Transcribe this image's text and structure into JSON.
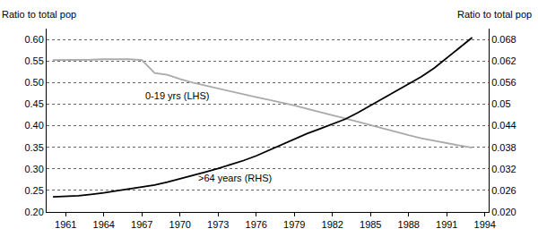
{
  "chart_data": {
    "type": "line",
    "ylabel": "Ratio to total pop",
    "y2label": "Ratio to total pop",
    "x": [
      1960,
      1961,
      1962,
      1963,
      1964,
      1965,
      1966,
      1967,
      1968,
      1969,
      1970,
      1971,
      1972,
      1973,
      1974,
      1975,
      1976,
      1977,
      1978,
      1979,
      1980,
      1981,
      1982,
      1983,
      1984,
      1985,
      1986,
      1987,
      1988,
      1989,
      1990,
      1991,
      1992,
      1993
    ],
    "series": [
      {
        "name": "0-19 yrs (LHS)",
        "color": "#aaaaaa",
        "axis": "y",
        "values": [
          0.552,
          0.552,
          0.553,
          0.553,
          0.554,
          0.554,
          0.554,
          0.552,
          0.522,
          0.518,
          0.508,
          0.5,
          0.493,
          0.487,
          0.48,
          0.473,
          0.466,
          0.46,
          0.454,
          0.447,
          0.439,
          0.431,
          0.424,
          0.417,
          0.409,
          0.401,
          0.393,
          0.385,
          0.378,
          0.371,
          0.365,
          0.359,
          0.354,
          0.349
        ]
      },
      {
        "name": ">64 years (RHS)",
        "color": "#000000",
        "axis": "y2",
        "values": [
          0.0242,
          0.0243,
          0.0245,
          0.0249,
          0.0253,
          0.0259,
          0.0264,
          0.0269,
          0.0275,
          0.0283,
          0.0292,
          0.0301,
          0.0311,
          0.0321,
          0.0332,
          0.0343,
          0.0356,
          0.0372,
          0.0388,
          0.0404,
          0.0418,
          0.0431,
          0.0444,
          0.0458,
          0.0476,
          0.0496,
          0.0516,
          0.0538,
          0.0556,
          0.0576,
          0.06,
          0.0628,
          0.0656,
          0.0685
        ]
      }
    ],
    "annotations": [
      {
        "text": "0-19 yrs (LHS)",
        "x": 1969.8,
        "y": 0.47,
        "axis": "y"
      },
      {
        "text": ">64 years (RHS)",
        "x": 1974.3,
        "y": 0.0295,
        "axis": "y2"
      }
    ],
    "xlim": [
      1959.5,
      1994.3
    ],
    "xticks": [
      1961,
      1964,
      1967,
      1970,
      1973,
      1976,
      1979,
      1982,
      1985,
      1988,
      1991,
      1994
    ],
    "ylim": [
      0.2,
      0.625
    ],
    "yticks": [
      {
        "value": 0.2,
        "label": "0.20"
      },
      {
        "value": 0.25,
        "label": "0.25"
      },
      {
        "value": 0.3,
        "label": "0.30"
      },
      {
        "value": 0.35,
        "label": "0.35"
      },
      {
        "value": 0.4,
        "label": "0.40"
      },
      {
        "value": 0.45,
        "label": "0.45"
      },
      {
        "value": 0.5,
        "label": "0.50"
      },
      {
        "value": 0.55,
        "label": "0.55"
      },
      {
        "value": 0.6,
        "label": "0.60"
      }
    ],
    "y2lim": [
      0.02,
      0.071
    ],
    "y2ticks": [
      {
        "value": 0.02,
        "label": "0.020"
      },
      0.026,
      0.032,
      0.038,
      0.044,
      0.05,
      0.056,
      0.062,
      0.068
    ],
    "grid": true
  }
}
